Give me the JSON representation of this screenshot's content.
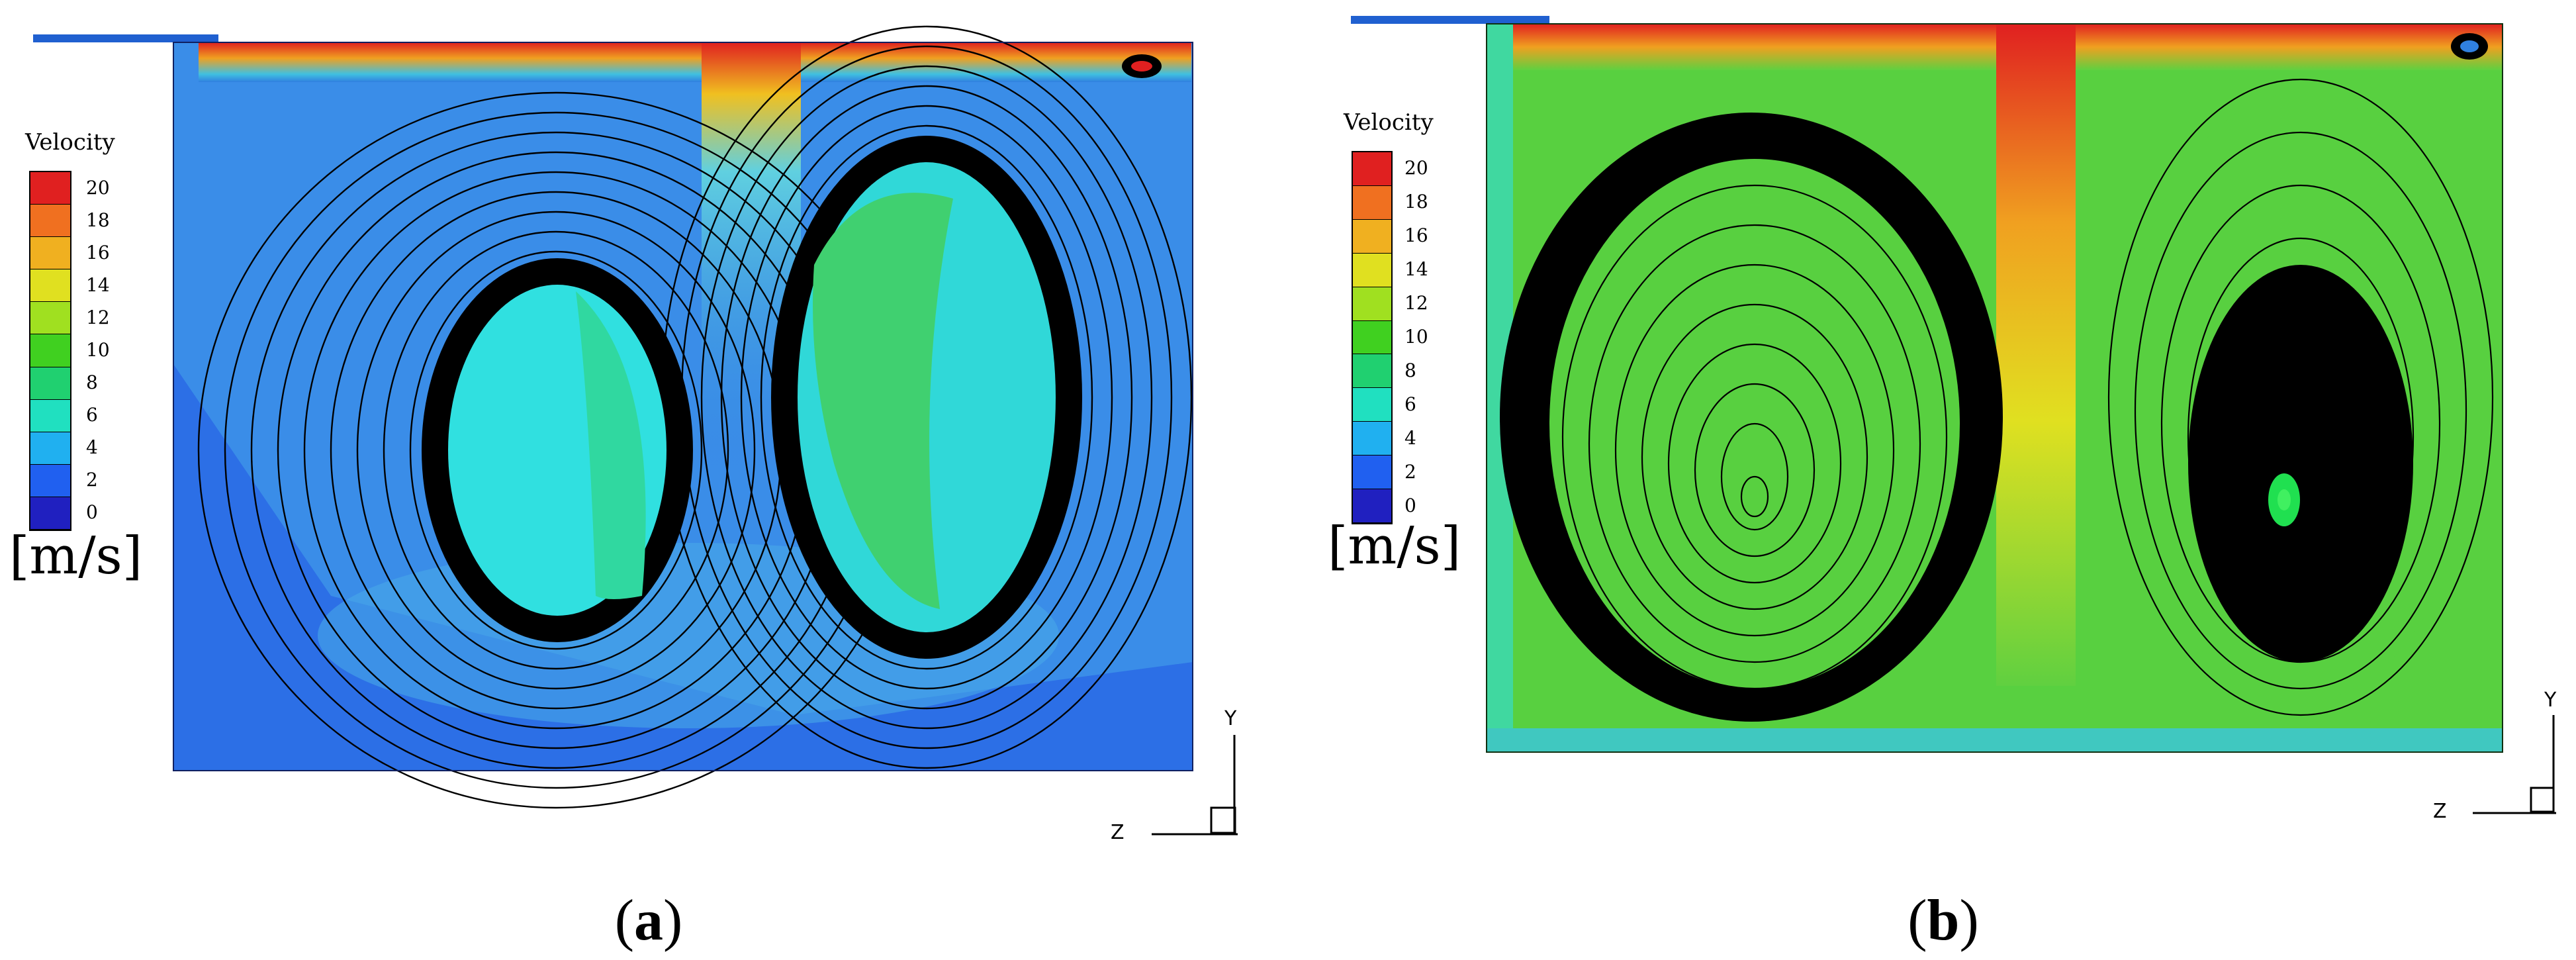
{
  "panels": [
    {
      "id": "a",
      "caption_label": "a",
      "legend_title": "Velocity",
      "units": "[m/s]",
      "ticks": [
        "20",
        "18",
        "16",
        "14",
        "12",
        "10",
        "8",
        "6",
        "4",
        "2",
        "0"
      ],
      "axis_y": "Y",
      "axis_z": "Z"
    },
    {
      "id": "b",
      "caption_label": "b",
      "legend_title": "Velocity",
      "units": "[m/s]",
      "ticks": [
        "20",
        "18",
        "16",
        "14",
        "12",
        "10",
        "8",
        "6",
        "4",
        "2",
        "0"
      ],
      "axis_y": "Y",
      "axis_z": "Z"
    }
  ],
  "colorbar_colors": [
    "#e02020",
    "#f07020",
    "#f0b020",
    "#e0e020",
    "#a0e020",
    "#40d020",
    "#20d070",
    "#20e0c0",
    "#20b0f0",
    "#2060f0",
    "#2020c0"
  ]
}
